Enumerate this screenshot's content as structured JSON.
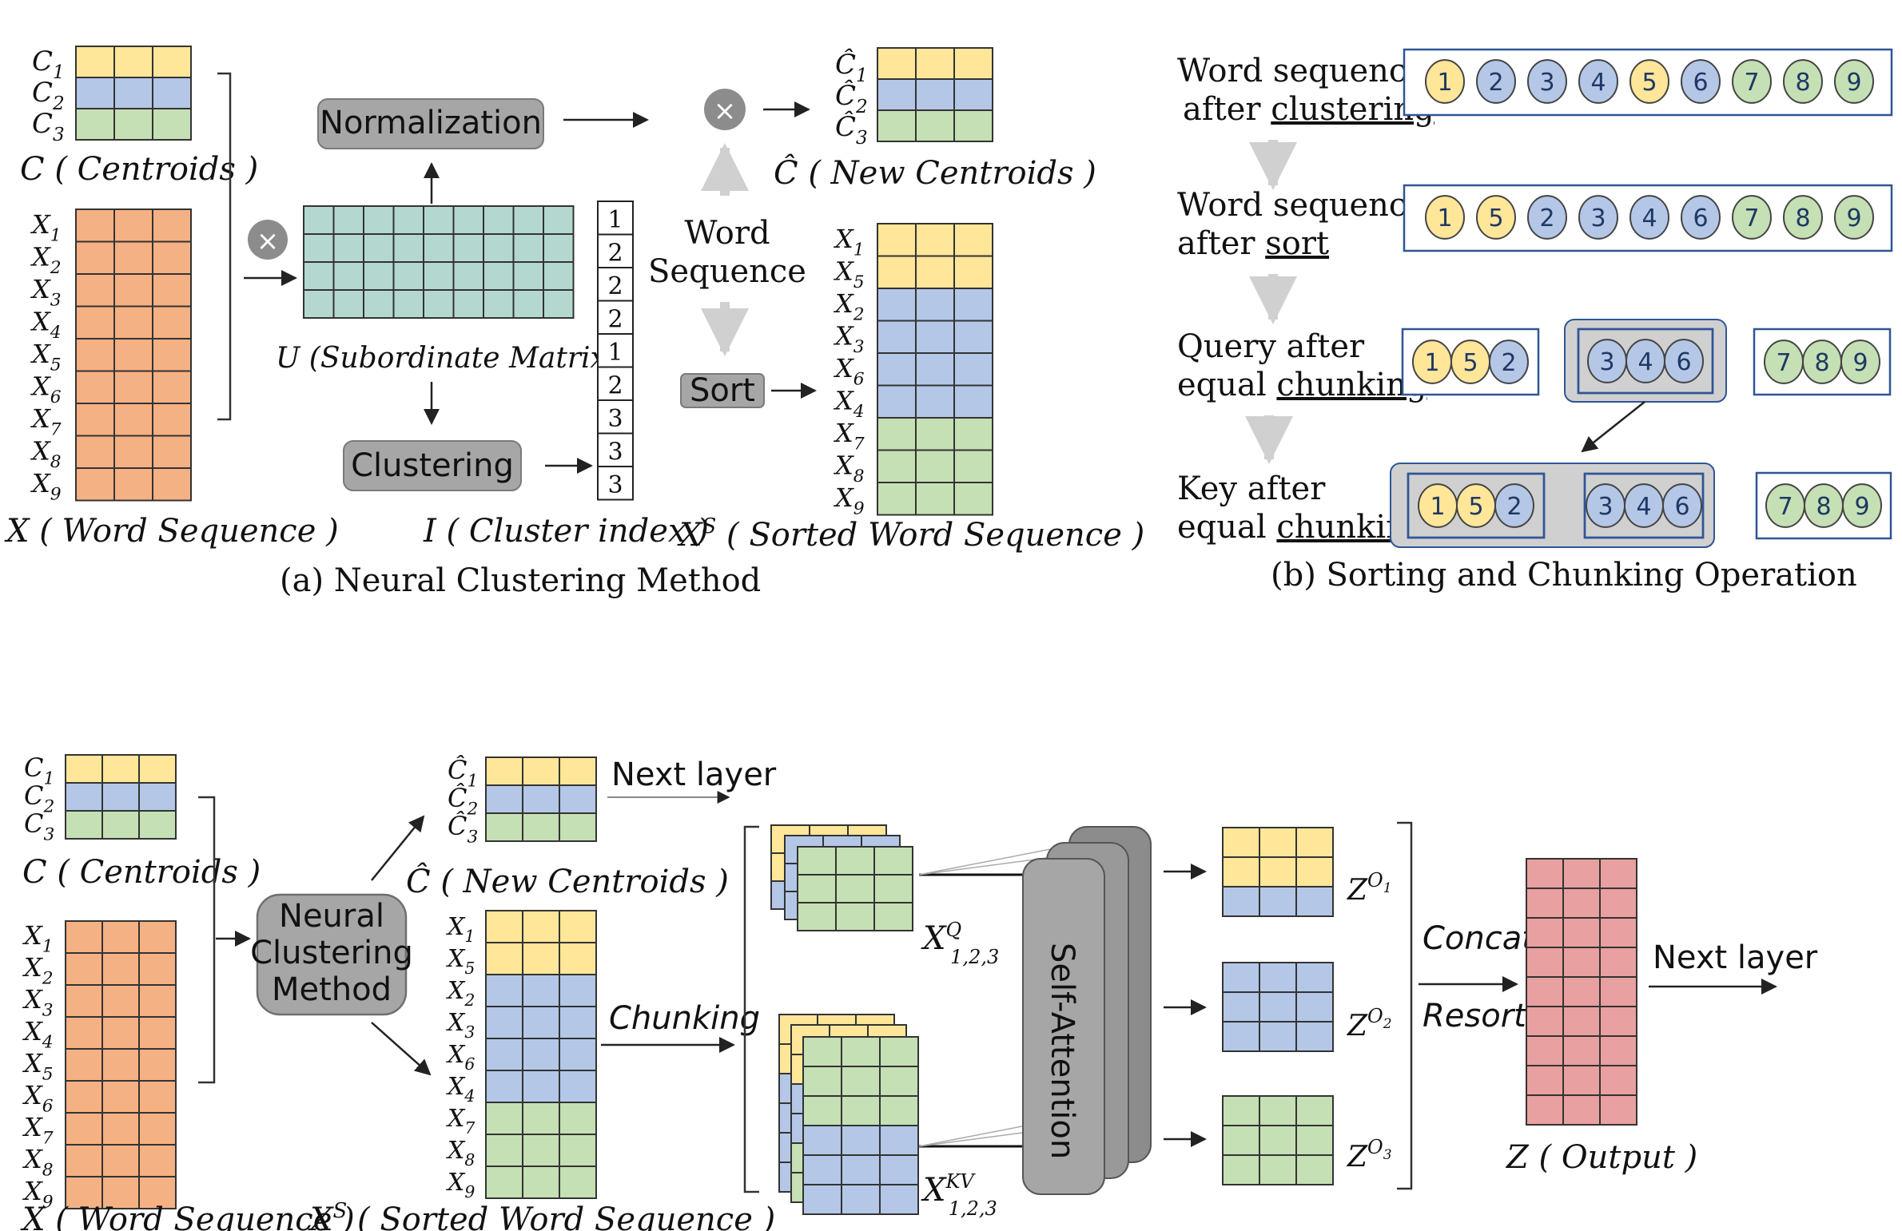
{
  "colors": {
    "yellow": "#ffe699",
    "blue": "#b4c7e7",
    "green": "#c5e0b4",
    "orange": "#f4b183",
    "teal": "#b4d8d0",
    "red": "#e8a0a0",
    "box": "#a6a6a6",
    "border": "#2f5597",
    "grey_shape": "#8c8c8c",
    "grey_arrow": "#d0d0d0"
  },
  "panel_a": {
    "caption": "(a)   Neural Clustering Method",
    "centroid_labels": [
      "C1",
      "C2",
      "C3"
    ],
    "centroids_caption": "C ( Centroids )",
    "word_labels": [
      "X1",
      "X2",
      "X3",
      "X4",
      "X5",
      "X6",
      "X7",
      "X8",
      "X9"
    ],
    "word_caption": "X ( Word Sequence )",
    "normalization": "Normalization",
    "clustering": "Clustering",
    "subordinate_caption": "U (Subordinate Matrix  )",
    "cluster_index": [
      "1",
      "2",
      "2",
      "2",
      "1",
      "2",
      "3",
      "3",
      "3"
    ],
    "cluster_index_caption": "I ( Cluster index )",
    "word_sequence_line1": "Word",
    "word_sequence_line2": "Sequence",
    "sort": "Sort",
    "new_centroid_labels": [
      "Ĉ1",
      "Ĉ2",
      "Ĉ3"
    ],
    "new_centroids_caption": "Ĉ ( New Centroids )",
    "sorted_labels": [
      "X1",
      "X5",
      "X2",
      "X3",
      "X6",
      "X4",
      "X7",
      "X8",
      "X9"
    ],
    "sorted_caption": "XS ( Sorted Word Sequence )",
    "multiply_symbol": "×"
  },
  "panel_b": {
    "caption": "(b)   Sorting and Chunking Operation",
    "row1_line1": "Word sequence",
    "row1_line2a": "after ",
    "row1_line2b": "clustering",
    "row1_seq": [
      "1",
      "2",
      "3",
      "4",
      "5",
      "6",
      "7",
      "8",
      "9"
    ],
    "row1_colors": [
      "y",
      "b",
      "b",
      "b",
      "y",
      "b",
      "g",
      "g",
      "g"
    ],
    "row2_line1": "Word sequence",
    "row2_line2a": "after ",
    "row2_line2b": "sort",
    "row2_seq": [
      "1",
      "5",
      "2",
      "3",
      "4",
      "6",
      "7",
      "8",
      "9"
    ],
    "row2_colors": [
      "y",
      "y",
      "b",
      "b",
      "b",
      "b",
      "g",
      "g",
      "g"
    ],
    "row3_line1": "Query after",
    "row3_line2a": "equal ",
    "row3_line2b": "chunking",
    "row4_line1": "Key after",
    "row4_line2a": "equal ",
    "row4_line2b": "chunking",
    "chunk1": [
      "1",
      "5",
      "2"
    ],
    "chunk2": [
      "3",
      "4",
      "6"
    ],
    "chunk3": [
      "7",
      "8",
      "9"
    ]
  },
  "panel_c": {
    "centroid_labels": [
      "C1",
      "C2",
      "C3"
    ],
    "centroids_caption": "C ( Centroids )",
    "word_labels": [
      "X1",
      "X2",
      "X3",
      "X4",
      "X5",
      "X6",
      "X7",
      "X8",
      "X9"
    ],
    "word_caption": "X ( Word Sequence )",
    "ncm_line1": "Neural",
    "ncm_line2": "Clustering",
    "ncm_line3": "Method",
    "new_centroid_labels": [
      "Ĉ1",
      "Ĉ2",
      "Ĉ3"
    ],
    "new_centroids_caption": "Ĉ ( New Centroids )",
    "next_layer_top": "Next layer",
    "sorted_labels": [
      "X1",
      "X5",
      "X2",
      "X3",
      "X6",
      "X4",
      "X7",
      "X8",
      "X9"
    ],
    "sorted_caption": "XS ( Sorted Word Sequence )",
    "chunking": "Chunking",
    "xq_base": "X",
    "xq_sup": "Q",
    "xq_sub": "1,2,3",
    "xkv_base": "X",
    "xkv_sup": "KV",
    "xkv_sub": "1,2,3",
    "self_attention": "Self-Attention",
    "z_base": "Z",
    "z_sup_base": "O",
    "z_subs": [
      "1",
      "2",
      "3"
    ],
    "concat": "Concat",
    "resort": "Resort",
    "output_caption": "Z ( Output )",
    "next_layer_right": "Next layer"
  }
}
